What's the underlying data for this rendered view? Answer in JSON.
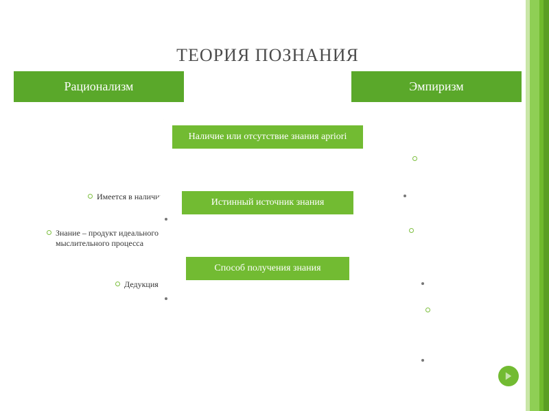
{
  "colors": {
    "accent": "#6fb92c",
    "accent_light": "#9ed06a",
    "header_box": "#5aa82a",
    "arrow_fill": "#72bb32",
    "stripe1": "#c9e6a7",
    "stripe2": "#8fcf55",
    "stripe3": "#6fb92c",
    "stripe4": "#5a9e24",
    "bullet_ring": "#7cbf3e",
    "nav_btn": "#72bb32"
  },
  "title": "ТЕОРИЯ ПОЗНАНИЯ",
  "title_fontsize": 26,
  "header_left": "Рационализм",
  "header_right": "Эмпиризм",
  "arrows": [
    {
      "label": "Наличие или отсутствие знания apriori",
      "body_width": 278
    },
    {
      "label": "Истинный источник знания",
      "body_width": 250
    },
    {
      "label": "Способ получения знания",
      "body_width": 238
    }
  ],
  "left_bullets": {
    "b1": "Имеется в наличии",
    "b2": "Знание – продукт идеального мыслительного процесса",
    "b3": "Дедукция"
  }
}
